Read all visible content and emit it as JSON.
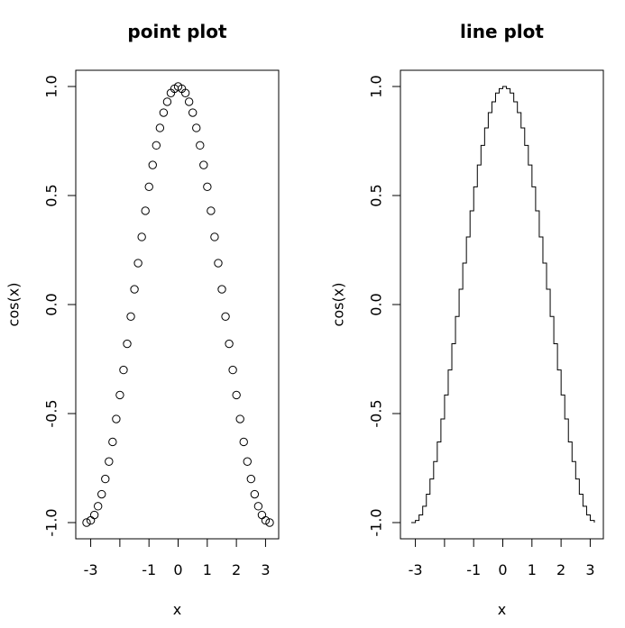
{
  "chart_data": [
    {
      "type": "scatter",
      "title": "point plot",
      "xlabel": "x",
      "ylabel": "cos(x)",
      "xlim": [
        -3.1416,
        3.1416
      ],
      "ylim": [
        -1.0,
        1.0
      ],
      "x_ticks": [
        -3,
        -1,
        0,
        1,
        2,
        3
      ],
      "x_tick_labels": [
        "-3",
        "-1",
        "0",
        "1",
        "2",
        "3"
      ],
      "y_ticks": [
        -1.0,
        -0.5,
        0.0,
        0.5,
        1.0
      ],
      "y_tick_labels": [
        "-1.0",
        "-0.5",
        "0.0",
        "0.5",
        "1.0"
      ],
      "grid": false,
      "legend": "none",
      "series": [
        {
          "x": [
            -3.1416,
            -2.9986,
            -2.8736,
            -2.7486,
            -2.6236,
            -2.4986,
            -2.3736,
            -2.2486,
            -2.1236,
            -1.9986,
            -1.8736,
            -1.7486,
            -1.6236,
            -1.4986,
            -1.3736,
            -1.2486,
            -1.1236,
            -0.9986,
            -0.8736,
            -0.7486,
            -0.6236,
            -0.4986,
            -0.3736,
            -0.2486,
            -0.1236,
            0.0,
            0.1264,
            0.2514,
            0.3764,
            0.5014,
            0.6264,
            0.7514,
            0.8764,
            1.0014,
            1.1264,
            1.2514,
            1.3764,
            1.5014,
            1.6264,
            1.7514,
            1.8764,
            2.0014,
            2.1264,
            2.2514,
            2.3764,
            2.5014,
            2.6264,
            2.7514,
            2.8764,
            3.0014,
            3.1416
          ],
          "y": [
            -1.0,
            -0.99,
            -0.965,
            -0.925,
            -0.87,
            -0.8,
            -0.72,
            -0.63,
            -0.525,
            -0.415,
            -0.3,
            -0.18,
            -0.055,
            0.07,
            0.19,
            0.31,
            0.43,
            0.54,
            0.64,
            0.73,
            0.81,
            0.88,
            0.93,
            0.97,
            0.99,
            1.0,
            0.99,
            0.97,
            0.93,
            0.88,
            0.81,
            0.73,
            0.64,
            0.54,
            0.43,
            0.31,
            0.19,
            0.07,
            -0.055,
            -0.18,
            -0.3,
            -0.415,
            -0.525,
            -0.63,
            -0.72,
            -0.8,
            -0.87,
            -0.925,
            -0.965,
            -0.99,
            -1.0
          ]
        }
      ]
    },
    {
      "type": "line",
      "title": "line plot",
      "xlabel": "x",
      "ylabel": "cos(x)",
      "xlim": [
        -3.1416,
        3.1416
      ],
      "ylim": [
        -1.0,
        1.0
      ],
      "x_ticks": [
        -3,
        -1,
        0,
        1,
        2,
        3
      ],
      "x_tick_labels": [
        "-3",
        "-1",
        "0",
        "1",
        "2",
        "3"
      ],
      "y_ticks": [
        -1.0,
        -0.5,
        0.0,
        0.5,
        1.0
      ],
      "y_tick_labels": [
        "-1.0",
        "-0.5",
        "0.0",
        "0.5",
        "1.0"
      ],
      "grid": false,
      "legend": "none",
      "line_style": "step",
      "series": [
        {
          "x": [
            -3.1416,
            -2.9986,
            -2.8736,
            -2.7486,
            -2.6236,
            -2.4986,
            -2.3736,
            -2.2486,
            -2.1236,
            -1.9986,
            -1.8736,
            -1.7486,
            -1.6236,
            -1.4986,
            -1.3736,
            -1.2486,
            -1.1236,
            -0.9986,
            -0.8736,
            -0.7486,
            -0.6236,
            -0.4986,
            -0.3736,
            -0.2486,
            -0.1236,
            0.0,
            0.1264,
            0.2514,
            0.3764,
            0.5014,
            0.6264,
            0.7514,
            0.8764,
            1.0014,
            1.1264,
            1.2514,
            1.3764,
            1.5014,
            1.6264,
            1.7514,
            1.8764,
            2.0014,
            2.1264,
            2.2514,
            2.3764,
            2.5014,
            2.6264,
            2.7514,
            2.8764,
            3.0014,
            3.1416
          ],
          "y": [
            -1.0,
            -0.99,
            -0.965,
            -0.925,
            -0.87,
            -0.8,
            -0.72,
            -0.63,
            -0.525,
            -0.415,
            -0.3,
            -0.18,
            -0.055,
            0.07,
            0.19,
            0.31,
            0.43,
            0.54,
            0.64,
            0.73,
            0.81,
            0.88,
            0.93,
            0.97,
            0.99,
            1.0,
            0.99,
            0.97,
            0.93,
            0.88,
            0.81,
            0.73,
            0.64,
            0.54,
            0.43,
            0.31,
            0.19,
            0.07,
            -0.055,
            -0.18,
            -0.3,
            -0.415,
            -0.525,
            -0.63,
            -0.72,
            -0.8,
            -0.87,
            -0.925,
            -0.965,
            -0.99,
            -1.0
          ]
        }
      ]
    }
  ]
}
